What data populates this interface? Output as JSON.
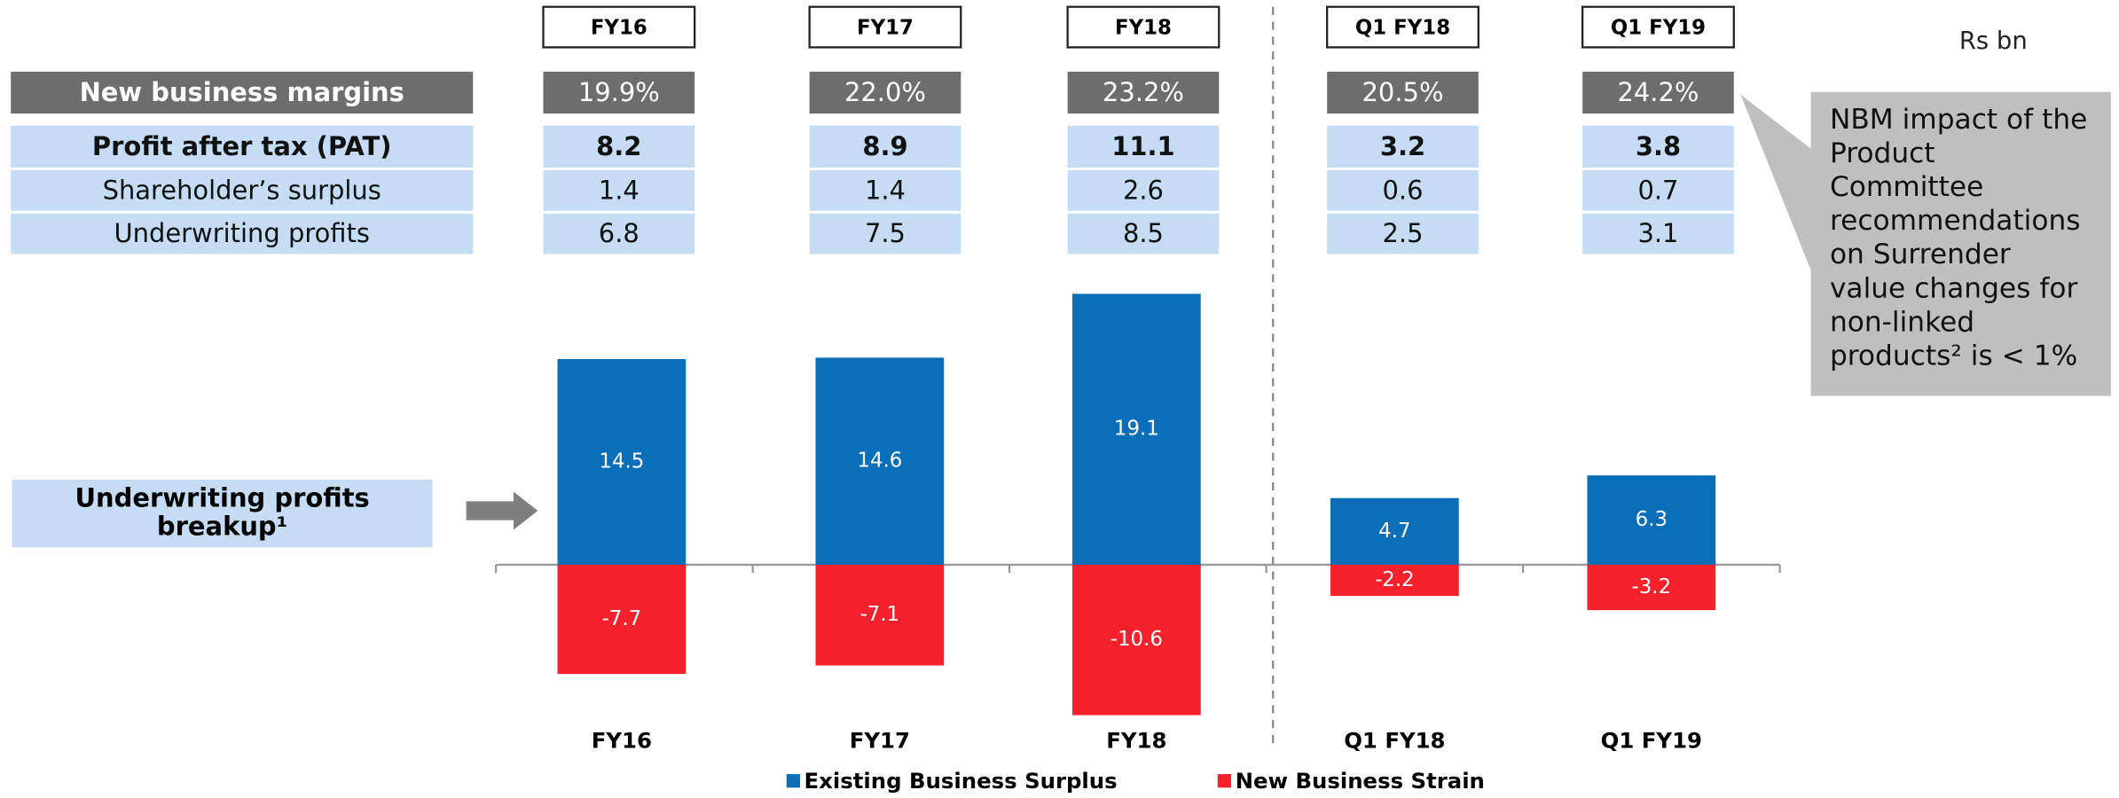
{
  "unit_label": "Rs bn",
  "table": {
    "columns": [
      "FY16",
      "FY17",
      "FY18",
      "Q1 FY18",
      "Q1 FY19"
    ],
    "rows": [
      {
        "label": "New business margins",
        "values": [
          "19.9%",
          "22.0%",
          "23.2%",
          "20.5%",
          "24.2%"
        ]
      },
      {
        "label": "Profit after tax (PAT)",
        "values": [
          8.2,
          8.9,
          11.1,
          3.2,
          3.8
        ]
      },
      {
        "label": "Shareholder’s surplus",
        "values": [
          1.4,
          1.4,
          2.6,
          0.6,
          0.7
        ]
      },
      {
        "label": "Underwriting profits",
        "values": [
          6.8,
          7.5,
          8.5,
          2.5,
          3.1
        ]
      }
    ]
  },
  "breakup_label": "Underwriting profits breakup¹",
  "callout": "NBM impact of the Product Committee recommendations on Surrender value changes for non-linked products² is < 1%",
  "chart_data": {
    "type": "bar",
    "categories": [
      "FY16",
      "FY17",
      "FY18",
      "Q1 FY18",
      "Q1 FY19"
    ],
    "series": [
      {
        "name": "Existing Business Surplus",
        "color": "#0a6fb8",
        "values": [
          14.5,
          14.6,
          19.1,
          4.7,
          6.3
        ]
      },
      {
        "name": "New Business Strain",
        "color": "#f5222d",
        "values": [
          -7.7,
          -7.1,
          -10.6,
          -2.2,
          -3.2
        ]
      }
    ]
  }
}
